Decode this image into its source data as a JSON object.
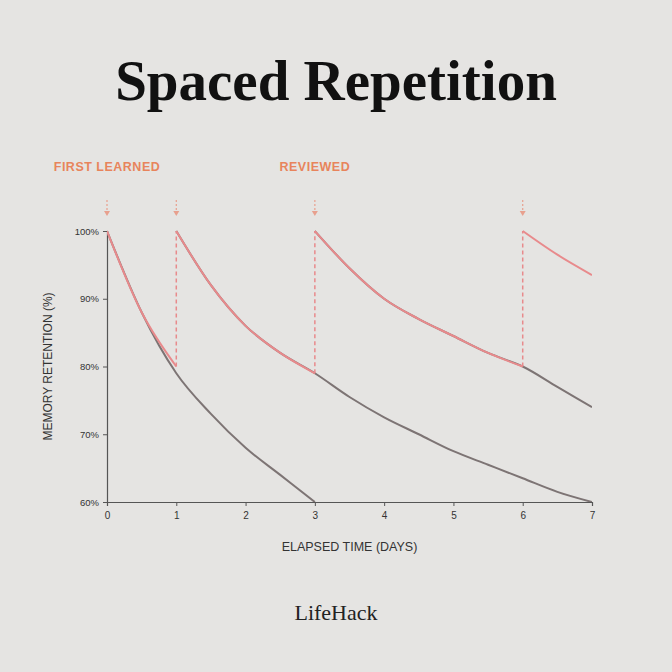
{
  "chart_data": {
    "type": "line",
    "title": "Spaced Repetition",
    "x_label": "ELAPSED TIME (DAYS)",
    "y_label": "MEMORY RETENTION (%)",
    "footer": "LifeHack",
    "annotations": [
      {
        "text": "FIRST LEARNED",
        "x": 0
      },
      {
        "text": "REVIEWED",
        "x": 3
      }
    ],
    "event_days": [
      0,
      1,
      3,
      6
    ],
    "xlim": [
      0,
      7
    ],
    "xticks": [
      0,
      1,
      2,
      3,
      4,
      5,
      6,
      7
    ],
    "ylim": [
      60,
      100
    ],
    "yticks": [
      {
        "value": 60,
        "label": "60%"
      },
      {
        "value": 70,
        "label": "70%"
      },
      {
        "value": 80,
        "label": "80%"
      },
      {
        "value": 90,
        "label": "90%"
      },
      {
        "value": 100,
        "label": "100%"
      }
    ],
    "series": [
      {
        "color": "#7d7474",
        "x": [
          0,
          0.5,
          1,
          1.5,
          2,
          2.5,
          3
        ],
        "values": [
          100,
          88,
          79,
          73,
          68,
          64,
          60
        ]
      },
      {
        "color": "#7d7474",
        "x": [
          1,
          1.5,
          2,
          2.5,
          3,
          3.5,
          4,
          4.5,
          5,
          5.5,
          6,
          6.5,
          7
        ],
        "values": [
          100,
          92,
          86,
          82,
          79,
          75.5,
          72.5,
          70,
          67.5,
          65.5,
          63.5,
          61.5,
          60
        ]
      },
      {
        "color": "#7d7474",
        "x": [
          3,
          3.5,
          4,
          4.5,
          5,
          5.5,
          6,
          6.5,
          7
        ],
        "values": [
          100,
          94.5,
          90,
          87,
          84.5,
          82,
          80,
          77,
          74
        ]
      },
      {
        "color": "#e88a8c",
        "x": [
          0,
          0.5,
          1,
          1,
          1.5,
          2,
          2.5,
          3,
          3,
          3.5,
          4,
          4.5,
          5,
          5.5,
          6,
          6,
          6.5,
          7
        ],
        "values": [
          100,
          88,
          80,
          100,
          92,
          86,
          82,
          79,
          100,
          94.5,
          90,
          87,
          84.5,
          82,
          80,
          100,
          96.5,
          93.5
        ]
      }
    ]
  }
}
